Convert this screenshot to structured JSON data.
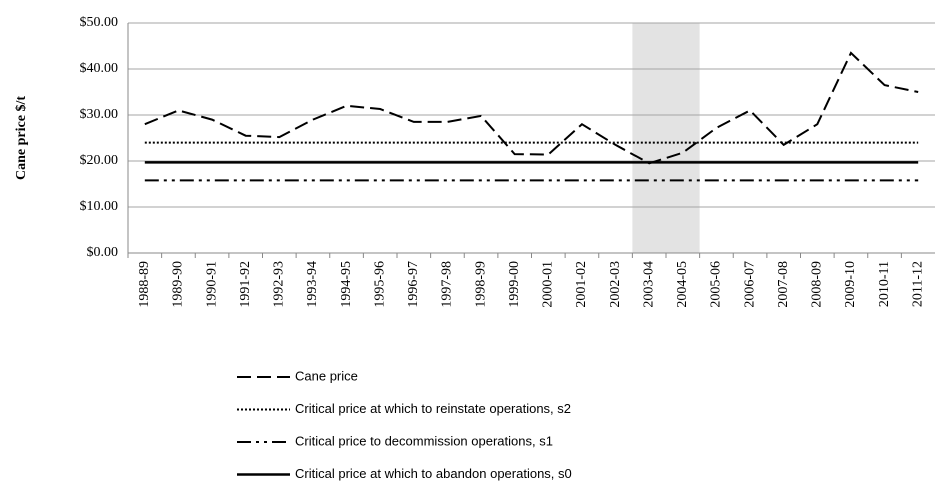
{
  "chart_data": {
    "type": "line",
    "y_label": "Cane price $/t",
    "categories": [
      "1988-89",
      "1989-90",
      "1990-91",
      "1991-92",
      "1992-93",
      "1993-94",
      "1994-95",
      "1995-96",
      "1996-97",
      "1997-98",
      "1998-99",
      "1999-00",
      "2000-01",
      "2001-02",
      "2002-03",
      "2003-04",
      "2004-05",
      "2005-06",
      "2006-07",
      "2007-08",
      "2008-09",
      "2009-10",
      "2010-11",
      "2011-12"
    ],
    "series": [
      {
        "name": "Cane price",
        "color": "#000000",
        "line_style": "dashed",
        "values": [
          28,
          31,
          29,
          25.5,
          25.2,
          29,
          32,
          31.3,
          28.5,
          28.5,
          29.8,
          21.5,
          21.4,
          28,
          23.5,
          19.5,
          21.8,
          27.2,
          31,
          23.5,
          28,
          43.5,
          36.5,
          35
        ]
      },
      {
        "name": "Critical price at which to reinstate operations, s2",
        "color": "#000000",
        "line_style": "dotted",
        "values": [
          24,
          24,
          24,
          24,
          24,
          24,
          24,
          24,
          24,
          24,
          24,
          24,
          24,
          24,
          24,
          24,
          24,
          24,
          24,
          24,
          24,
          24,
          24,
          24
        ]
      },
      {
        "name": "Critical price to decommission operations, s1",
        "color": "#000000",
        "line_style": "dash-dot-dot",
        "values": [
          15.8,
          15.8,
          15.8,
          15.8,
          15.8,
          15.8,
          15.8,
          15.8,
          15.8,
          15.8,
          15.8,
          15.8,
          15.8,
          15.8,
          15.8,
          15.8,
          15.8,
          15.8,
          15.8,
          15.8,
          15.8,
          15.8,
          15.8,
          15.8
        ]
      },
      {
        "name": "Critical price at which to abandon operations, s0",
        "color": "#000000",
        "line_style": "solid",
        "values": [
          19.7,
          19.7,
          19.7,
          19.7,
          19.7,
          19.7,
          19.7,
          19.7,
          19.7,
          19.7,
          19.7,
          19.7,
          19.7,
          19.7,
          19.7,
          19.7,
          19.7,
          19.7,
          19.7,
          19.7,
          19.7,
          19.7,
          19.7,
          19.7
        ]
      }
    ],
    "shaded_span": [
      15,
      16
    ],
    "shade_color": "#e3e3e3",
    "ylim": [
      0,
      50
    ],
    "yticks": [
      {
        "value": 0,
        "label": "$0.00"
      },
      {
        "value": 10,
        "label": "$10.00"
      },
      {
        "value": 20,
        "label": "$20.00"
      },
      {
        "value": 30,
        "label": "$30.00"
      },
      {
        "value": 40,
        "label": "$40.00"
      },
      {
        "value": 50,
        "label": "$50.00"
      }
    ],
    "grid": true,
    "legend_position": "bottom"
  }
}
